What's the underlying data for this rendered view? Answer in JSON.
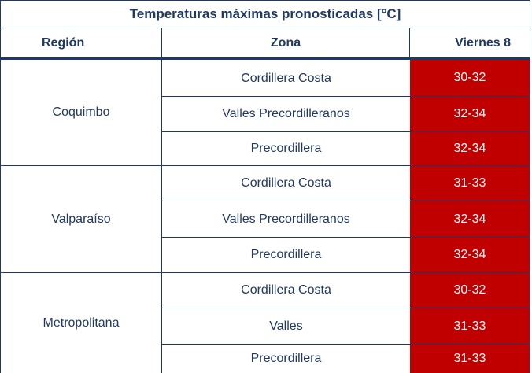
{
  "table": {
    "title": "Temperaturas máximas pronosticadas [°C]",
    "headers": {
      "region": "Región",
      "zona": "Zona",
      "day": "Viernes 8"
    },
    "colors": {
      "header_text": "#1f3864",
      "value_bg": "#c00000",
      "value_text": "#ffffff"
    },
    "groups": [
      {
        "region": "Coquimbo",
        "rows": [
          {
            "zona": "Cordillera Costa",
            "temp": "30-32"
          },
          {
            "zona": "Valles Precordilleranos",
            "temp": "32-34"
          },
          {
            "zona": "Precordillera",
            "temp": "32-34"
          }
        ]
      },
      {
        "region": "Valparaíso",
        "rows": [
          {
            "zona": "Cordillera Costa",
            "temp": "31-33"
          },
          {
            "zona": "Valles Precordilleranos",
            "temp": "32-34"
          },
          {
            "zona": "Precordillera",
            "temp": "32-34"
          }
        ]
      },
      {
        "region": "Metropolitana",
        "rows": [
          {
            "zona": "Cordillera Costa",
            "temp": "30-32"
          },
          {
            "zona": "Valles",
            "temp": "31-33"
          },
          {
            "zona": "Precordillera",
            "temp": "31-33"
          }
        ]
      }
    ]
  }
}
